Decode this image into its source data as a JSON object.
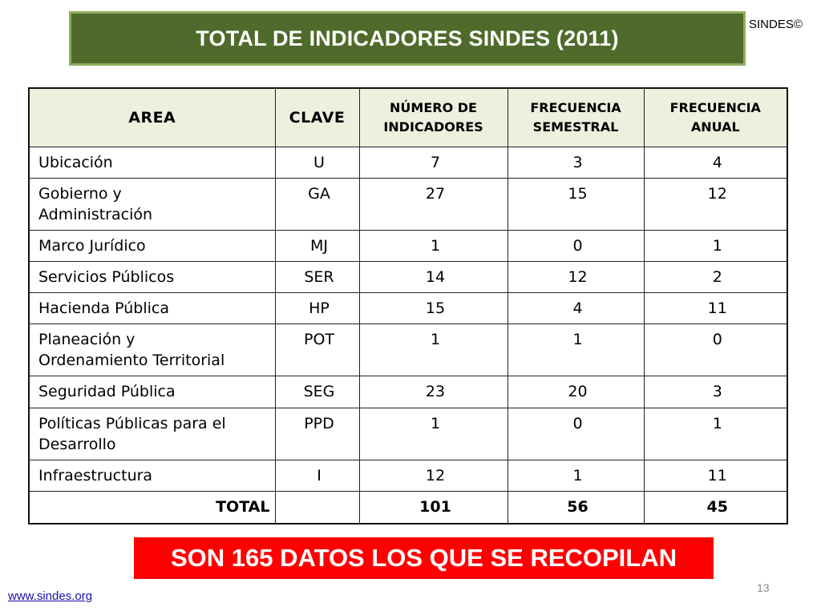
{
  "slide": {
    "title": "TOTAL DE INDICADORES SINDES (2011)",
    "brand": "SINDES©",
    "callout": "SON 165 DATOS LOS QUE SE RECOPILAN",
    "page_number": "13",
    "website": "www.sindes.org"
  },
  "colors": {
    "title_bg": "#4e6b2b",
    "title_border": "#8db05a",
    "header_bg": "#ebf1dd",
    "callout_bg": "#ff0000",
    "link": "#1a0dab"
  },
  "table": {
    "headers": {
      "area": "AREA",
      "clave": "CLAVE",
      "numero": [
        "NÚMERO DE",
        "INDICADORES"
      ],
      "semestral": [
        "FRECUENCIA",
        "SEMESTRAL"
      ],
      "anual": [
        "FRECUENCIA",
        "ANUAL"
      ]
    },
    "rows": [
      {
        "area": [
          "Ubicación"
        ],
        "clave": "U",
        "numero": "7",
        "semestral": "3",
        "anual": "4"
      },
      {
        "area": [
          "Gobierno y",
          "Administración"
        ],
        "clave": "GA",
        "numero": "27",
        "semestral": "15",
        "anual": "12"
      },
      {
        "area": [
          "Marco Jurídico"
        ],
        "clave": "MJ",
        "numero": "1",
        "semestral": "0",
        "anual": "1"
      },
      {
        "area": [
          "Servicios Públicos"
        ],
        "clave": "SER",
        "numero": "14",
        "semestral": "12",
        "anual": "2"
      },
      {
        "area": [
          "Hacienda Pública"
        ],
        "clave": "HP",
        "numero": "15",
        "semestral": "4",
        "anual": "11"
      },
      {
        "area": [
          "Planeación y",
          "Ordenamiento Territorial"
        ],
        "clave": "POT",
        "numero": "1",
        "semestral": "1",
        "anual": "0"
      },
      {
        "area": [
          "Seguridad Pública"
        ],
        "clave": "SEG",
        "numero": "23",
        "semestral": "20",
        "anual": "3"
      },
      {
        "area": [
          "Políticas Públicas para el",
          "Desarrollo"
        ],
        "clave": "PPD",
        "numero": "1",
        "semestral": "0",
        "anual": "1"
      },
      {
        "area": [
          "Infraestructura"
        ],
        "clave": "I",
        "numero": "12",
        "semestral": "1",
        "anual": "11"
      }
    ],
    "total": {
      "label": "TOTAL",
      "clave": "",
      "numero": "101",
      "semestral": "56",
      "anual": "45"
    }
  }
}
